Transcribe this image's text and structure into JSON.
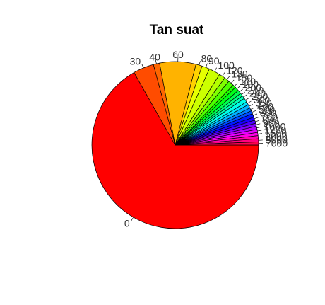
{
  "chart_data": {
    "type": "pie",
    "title": "Tan suat",
    "start": "horizontal-right",
    "direction": "clockwise",
    "labels": [
      "0",
      "30",
      "40",
      "60",
      "80",
      "90",
      "100",
      "120",
      "130",
      "150",
      "170",
      "180",
      "200",
      "210",
      "240",
      "250",
      "300",
      "350",
      "400",
      "500",
      "600",
      "700",
      "800",
      "900",
      "1000",
      "1200",
      "1500",
      "2000",
      "3000",
      "7000"
    ],
    "values": [
      66.5,
      4.0,
      1.2,
      7.0,
      1.2,
      1.5,
      2.2,
      1.2,
      1.0,
      1.1,
      0.6,
      0.8,
      0.7,
      0.6,
      0.6,
      0.8,
      0.6,
      0.7,
      0.6,
      0.6,
      0.7,
      0.6,
      0.6,
      0.6,
      0.6,
      0.6,
      0.6,
      0.6,
      0.6,
      0.6
    ],
    "colors": [
      "#FF0000",
      "#FF4C00",
      "#FF6600",
      "#FFB300",
      "#FFD200",
      "#E6FF00",
      "#CCFF00",
      "#B3FF00",
      "#80FF00",
      "#4DFF00",
      "#1AFF00",
      "#00FF19",
      "#00FF4D",
      "#00FF80",
      "#00FFB3",
      "#00FFE6",
      "#00E6FF",
      "#00B3FF",
      "#0080FF",
      "#004DFF",
      "#001AFF",
      "#1A00FF",
      "#4D00FF",
      "#8000FF",
      "#B300FF",
      "#E600FF",
      "#FF00E6",
      "#FF00B3",
      "#FF0080",
      "#FF004D"
    ]
  }
}
